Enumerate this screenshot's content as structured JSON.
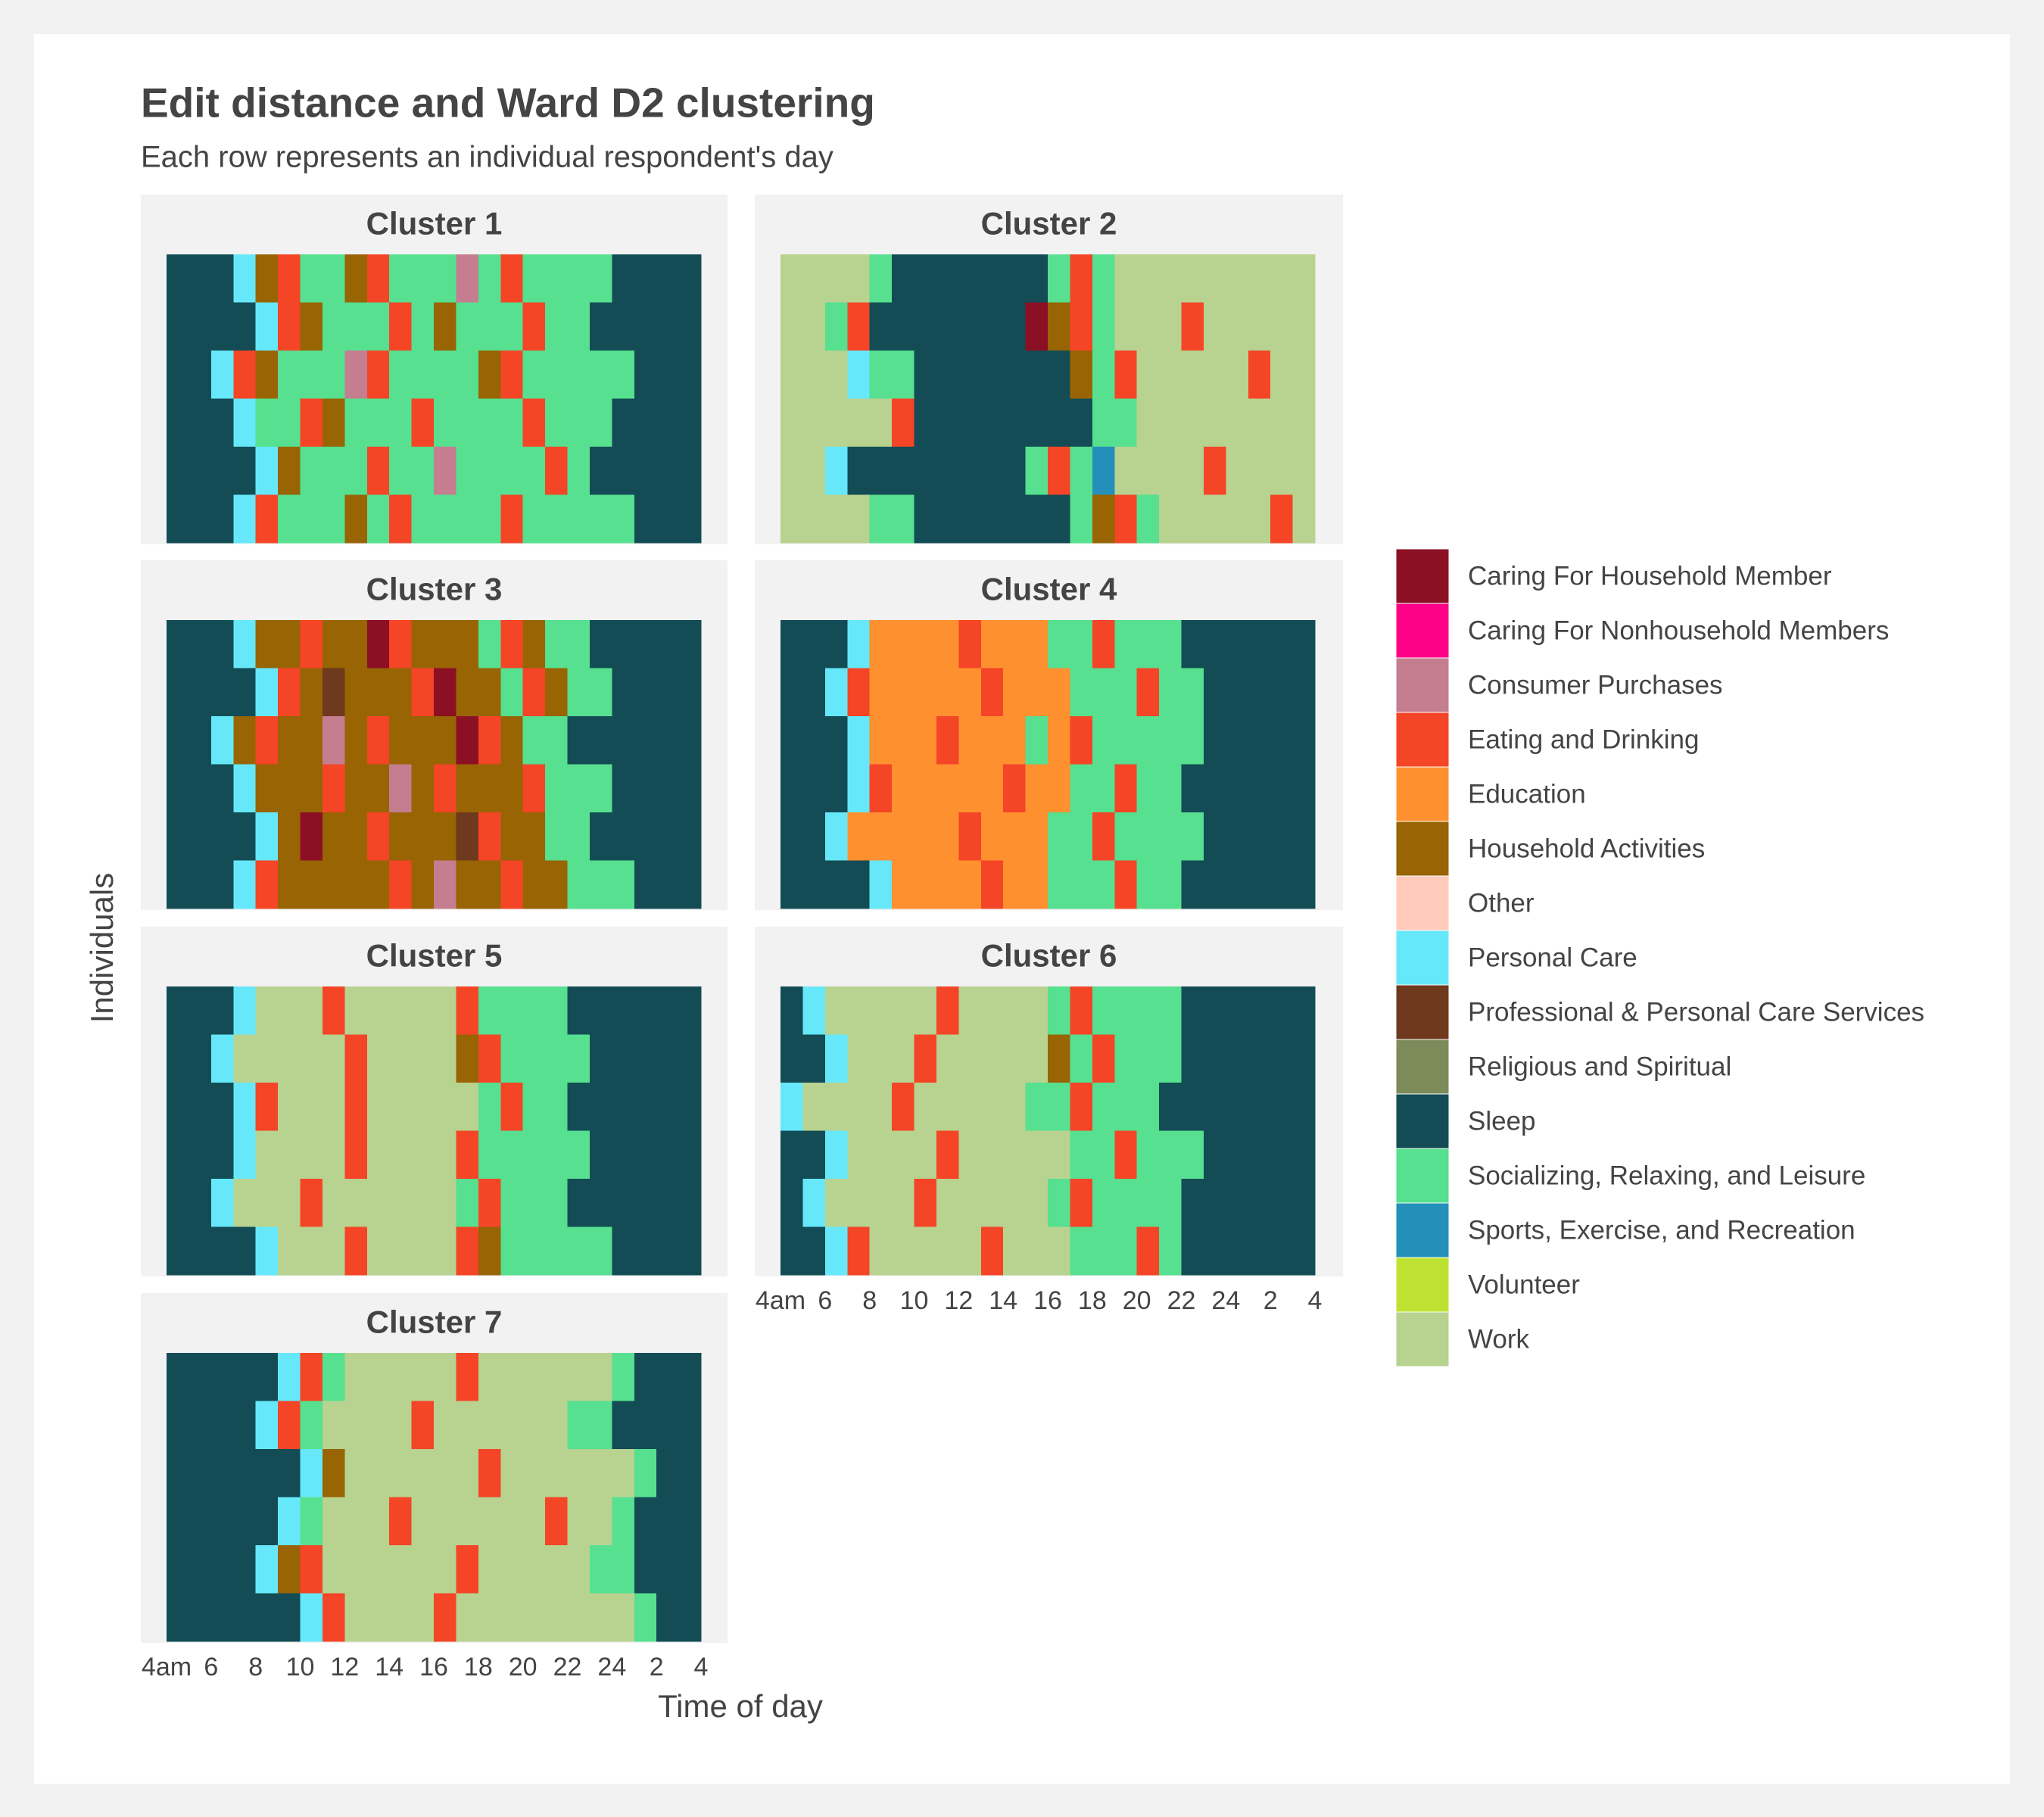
{
  "chart_data": {
    "type": "sequence",
    "title": "Edit distance and Ward D2 clustering",
    "subtitle": "Each row represents an individual respondent's day",
    "x_label": "Time of day",
    "y_label": "Individuals",
    "xlim": [
      4,
      28
    ],
    "xticks": [
      {
        "value": 4,
        "label": "4am"
      },
      6,
      8,
      10,
      12,
      14,
      16,
      18,
      20,
      22,
      24,
      {
        "value": 26,
        "label": "2"
      },
      {
        "value": 28,
        "label": "4"
      }
    ],
    "states": [
      {
        "name": "Caring For Household Member",
        "color": "#8B1024"
      },
      {
        "name": "Caring For Nonhousehold Members",
        "color": "#FF0088"
      },
      {
        "name": "Consumer Purchases",
        "color": "#C47E90"
      },
      {
        "name": "Eating and Drinking",
        "color": "#F44527"
      },
      {
        "name": "Education",
        "color": "#FF9030"
      },
      {
        "name": "Household Activities",
        "color": "#986404"
      },
      {
        "name": "Other",
        "color": "#FFCABA"
      },
      {
        "name": "Personal Care",
        "color": "#66E8FA"
      },
      {
        "name": "Professional & Personal Care Services",
        "color": "#6E391C"
      },
      {
        "name": "Religious and Spiritual",
        "color": "#7D8B5A"
      },
      {
        "name": "Sleep",
        "color": "#134C55"
      },
      {
        "name": "Socializing, Relaxing, and Leisure",
        "color": "#56E08F"
      },
      {
        "name": "Sports, Exercise, and Recreation",
        "color": "#2490BA"
      },
      {
        "name": "Volunteer",
        "color": "#BFE232"
      },
      {
        "name": "Work",
        "color": "#B8D290"
      }
    ],
    "facets": [
      {
        "title": "Cluster 1",
        "rows": [
          [
            10,
            10,
            10,
            7,
            5,
            3,
            11,
            11,
            5,
            3,
            11,
            11,
            11,
            2,
            11,
            3,
            11,
            11,
            11,
            11,
            10,
            10,
            10,
            10
          ],
          [
            10,
            10,
            10,
            10,
            7,
            3,
            5,
            11,
            11,
            11,
            3,
            11,
            5,
            11,
            11,
            11,
            3,
            11,
            11,
            10,
            10,
            10,
            10,
            10
          ],
          [
            10,
            10,
            7,
            3,
            5,
            11,
            11,
            11,
            2,
            3,
            11,
            11,
            11,
            11,
            5,
            3,
            11,
            11,
            11,
            11,
            11,
            10,
            10,
            10
          ],
          [
            10,
            10,
            10,
            7,
            11,
            11,
            3,
            5,
            11,
            11,
            11,
            3,
            11,
            11,
            11,
            11,
            3,
            11,
            11,
            11,
            10,
            10,
            10,
            10
          ],
          [
            10,
            10,
            10,
            10,
            7,
            5,
            11,
            11,
            11,
            3,
            11,
            11,
            2,
            11,
            11,
            11,
            11,
            3,
            11,
            10,
            10,
            10,
            10,
            10
          ],
          [
            10,
            10,
            10,
            7,
            3,
            11,
            11,
            11,
            5,
            11,
            3,
            11,
            11,
            11,
            11,
            3,
            11,
            11,
            11,
            11,
            11,
            10,
            10,
            10
          ]
        ]
      },
      {
        "title": "Cluster 2",
        "rows": [
          [
            14,
            14,
            14,
            14,
            11,
            10,
            10,
            10,
            10,
            10,
            10,
            10,
            11,
            3,
            11,
            14,
            14,
            14,
            14,
            14,
            14,
            14,
            14,
            14
          ],
          [
            14,
            14,
            11,
            3,
            10,
            10,
            10,
            10,
            10,
            10,
            10,
            0,
            5,
            3,
            11,
            14,
            14,
            14,
            3,
            14,
            14,
            14,
            14,
            14
          ],
          [
            14,
            14,
            14,
            7,
            11,
            11,
            10,
            10,
            10,
            10,
            10,
            10,
            10,
            5,
            11,
            3,
            14,
            14,
            14,
            14,
            14,
            3,
            14,
            14
          ],
          [
            14,
            14,
            14,
            14,
            14,
            3,
            10,
            10,
            10,
            10,
            10,
            10,
            10,
            10,
            11,
            11,
            14,
            14,
            14,
            14,
            14,
            14,
            14,
            14
          ],
          [
            14,
            14,
            7,
            10,
            10,
            10,
            10,
            10,
            10,
            10,
            10,
            11,
            3,
            11,
            12,
            14,
            14,
            14,
            14,
            3,
            14,
            14,
            14,
            14
          ],
          [
            14,
            14,
            14,
            14,
            11,
            11,
            10,
            10,
            10,
            10,
            10,
            10,
            10,
            11,
            5,
            3,
            11,
            14,
            14,
            14,
            14,
            14,
            3,
            14
          ]
        ]
      },
      {
        "title": "Cluster 3",
        "rows": [
          [
            10,
            10,
            10,
            7,
            5,
            5,
            3,
            5,
            5,
            0,
            3,
            5,
            5,
            5,
            11,
            3,
            5,
            11,
            11,
            10,
            10,
            10,
            10,
            10
          ],
          [
            10,
            10,
            10,
            10,
            7,
            3,
            5,
            8,
            5,
            5,
            5,
            3,
            0,
            5,
            5,
            11,
            3,
            5,
            11,
            11,
            10,
            10,
            10,
            10
          ],
          [
            10,
            10,
            7,
            5,
            3,
            5,
            5,
            2,
            5,
            3,
            5,
            5,
            5,
            0,
            3,
            5,
            11,
            11,
            10,
            10,
            10,
            10,
            10,
            10
          ],
          [
            10,
            10,
            10,
            7,
            5,
            5,
            5,
            3,
            5,
            5,
            2,
            5,
            3,
            5,
            5,
            5,
            3,
            11,
            11,
            11,
            10,
            10,
            10,
            10
          ],
          [
            10,
            10,
            10,
            10,
            7,
            5,
            0,
            5,
            5,
            3,
            5,
            5,
            5,
            8,
            3,
            5,
            5,
            11,
            11,
            10,
            10,
            10,
            10,
            10
          ],
          [
            10,
            10,
            10,
            7,
            3,
            5,
            5,
            5,
            5,
            5,
            3,
            5,
            2,
            5,
            5,
            3,
            5,
            5,
            11,
            11,
            11,
            10,
            10,
            10
          ]
        ]
      },
      {
        "title": "Cluster 4",
        "rows": [
          [
            10,
            10,
            10,
            7,
            4,
            4,
            4,
            4,
            3,
            4,
            4,
            4,
            11,
            11,
            3,
            11,
            11,
            11,
            10,
            10,
            10,
            10,
            10,
            10
          ],
          [
            10,
            10,
            7,
            3,
            4,
            4,
            4,
            4,
            4,
            3,
            4,
            4,
            4,
            11,
            11,
            11,
            3,
            11,
            11,
            10,
            10,
            10,
            10,
            10
          ],
          [
            10,
            10,
            10,
            7,
            4,
            4,
            4,
            3,
            4,
            4,
            4,
            11,
            4,
            3,
            11,
            11,
            11,
            11,
            11,
            10,
            10,
            10,
            10,
            10
          ],
          [
            10,
            10,
            10,
            7,
            3,
            4,
            4,
            4,
            4,
            4,
            3,
            4,
            4,
            11,
            11,
            3,
            11,
            11,
            10,
            10,
            10,
            10,
            10,
            10
          ],
          [
            10,
            10,
            7,
            4,
            4,
            4,
            4,
            4,
            3,
            4,
            4,
            4,
            11,
            11,
            3,
            11,
            11,
            11,
            11,
            10,
            10,
            10,
            10,
            10
          ],
          [
            10,
            10,
            10,
            10,
            7,
            4,
            4,
            4,
            4,
            3,
            4,
            4,
            11,
            11,
            11,
            3,
            11,
            11,
            10,
            10,
            10,
            10,
            10,
            10
          ]
        ]
      },
      {
        "title": "Cluster 5",
        "rows": [
          [
            10,
            10,
            10,
            7,
            14,
            14,
            14,
            3,
            14,
            14,
            14,
            14,
            14,
            3,
            11,
            11,
            11,
            11,
            10,
            10,
            10,
            10,
            10,
            10
          ],
          [
            10,
            10,
            7,
            14,
            14,
            14,
            14,
            14,
            3,
            14,
            14,
            14,
            14,
            5,
            3,
            11,
            11,
            11,
            11,
            10,
            10,
            10,
            10,
            10
          ],
          [
            10,
            10,
            10,
            7,
            3,
            14,
            14,
            14,
            3,
            14,
            14,
            14,
            14,
            14,
            11,
            3,
            11,
            11,
            10,
            10,
            10,
            10,
            10,
            10
          ],
          [
            10,
            10,
            10,
            7,
            14,
            14,
            14,
            14,
            3,
            14,
            14,
            14,
            14,
            3,
            11,
            11,
            11,
            11,
            11,
            10,
            10,
            10,
            10,
            10
          ],
          [
            10,
            10,
            7,
            14,
            14,
            14,
            3,
            14,
            14,
            14,
            14,
            14,
            14,
            11,
            3,
            11,
            11,
            11,
            10,
            10,
            10,
            10,
            10,
            10
          ],
          [
            10,
            10,
            10,
            10,
            7,
            14,
            14,
            14,
            3,
            14,
            14,
            14,
            14,
            3,
            5,
            11,
            11,
            11,
            11,
            11,
            10,
            10,
            10,
            10
          ]
        ]
      },
      {
        "title": "Cluster 6",
        "rows": [
          [
            10,
            7,
            14,
            14,
            14,
            14,
            14,
            3,
            14,
            14,
            14,
            14,
            11,
            3,
            11,
            11,
            11,
            11,
            10,
            10,
            10,
            10,
            10,
            10
          ],
          [
            10,
            10,
            7,
            14,
            14,
            14,
            3,
            14,
            14,
            14,
            14,
            14,
            5,
            11,
            3,
            11,
            11,
            11,
            10,
            10,
            10,
            10,
            10,
            10
          ],
          [
            7,
            14,
            14,
            14,
            14,
            3,
            14,
            14,
            14,
            14,
            14,
            11,
            11,
            3,
            11,
            11,
            11,
            10,
            10,
            10,
            10,
            10,
            10,
            10
          ],
          [
            10,
            10,
            7,
            14,
            14,
            14,
            14,
            3,
            14,
            14,
            14,
            14,
            14,
            11,
            11,
            3,
            11,
            11,
            11,
            10,
            10,
            10,
            10,
            10
          ],
          [
            10,
            7,
            14,
            14,
            14,
            14,
            3,
            14,
            14,
            14,
            14,
            14,
            11,
            3,
            11,
            11,
            11,
            11,
            10,
            10,
            10,
            10,
            10,
            10
          ],
          [
            10,
            10,
            7,
            3,
            14,
            14,
            14,
            14,
            14,
            3,
            14,
            14,
            14,
            11,
            11,
            11,
            3,
            11,
            10,
            10,
            10,
            10,
            10,
            10
          ]
        ]
      },
      {
        "title": "Cluster 7",
        "rows": [
          [
            10,
            10,
            10,
            10,
            10,
            7,
            3,
            11,
            14,
            14,
            14,
            14,
            14,
            3,
            14,
            14,
            14,
            14,
            14,
            14,
            11,
            10,
            10,
            10
          ],
          [
            10,
            10,
            10,
            10,
            7,
            3,
            11,
            14,
            14,
            14,
            14,
            3,
            14,
            14,
            14,
            14,
            14,
            14,
            11,
            11,
            10,
            10,
            10,
            10
          ],
          [
            10,
            10,
            10,
            10,
            10,
            10,
            7,
            5,
            14,
            14,
            14,
            14,
            14,
            14,
            3,
            14,
            14,
            14,
            14,
            14,
            14,
            11,
            10,
            10
          ],
          [
            10,
            10,
            10,
            10,
            10,
            7,
            11,
            14,
            14,
            14,
            3,
            14,
            14,
            14,
            14,
            14,
            14,
            3,
            14,
            14,
            11,
            10,
            10,
            10
          ],
          [
            10,
            10,
            10,
            10,
            7,
            5,
            3,
            14,
            14,
            14,
            14,
            14,
            14,
            3,
            14,
            14,
            14,
            14,
            14,
            11,
            11,
            10,
            10,
            10
          ],
          [
            10,
            10,
            10,
            10,
            10,
            10,
            7,
            3,
            14,
            14,
            14,
            14,
            3,
            14,
            14,
            14,
            14,
            14,
            14,
            14,
            14,
            11,
            10,
            10
          ]
        ]
      }
    ]
  }
}
